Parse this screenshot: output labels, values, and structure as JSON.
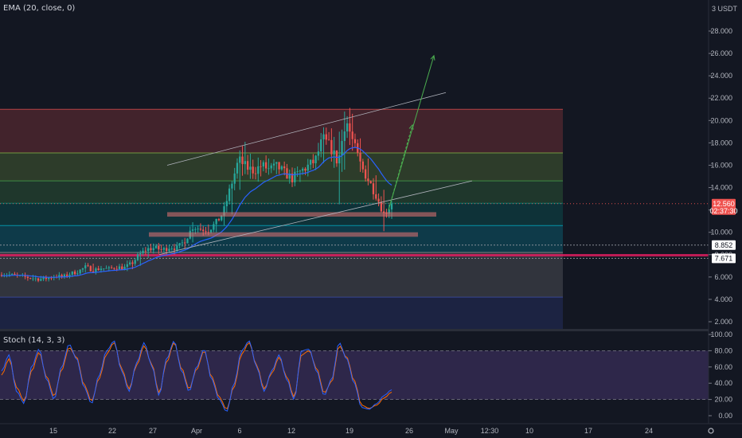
{
  "indicators": {
    "ema_label": "EMA (20, close, 0)",
    "stoch_label": "Stoch (14, 3, 3)"
  },
  "colors": {
    "background": "#131722",
    "up": "#26a69a",
    "down": "#ef5350",
    "ema": "#2962ff",
    "stoch_k": "#2962ff",
    "stoch_d": "#ff6d00",
    "stoch_band": "#7e57c2"
  },
  "chart_data": [
    {
      "type": "candlestick",
      "currency_label": "3 USDT",
      "yaxis_ticks": [
        "28.000",
        "26.000",
        "24.000",
        "22.000",
        "20.000",
        "18.000",
        "16.000",
        "14.000",
        "12.000",
        "10.000",
        "8.000",
        "6.000",
        "4.000",
        "2.000"
      ],
      "ylim": [
        1.0,
        30.2
      ],
      "xaxis_ticks": [
        "15",
        "22",
        "27",
        "Apr",
        "6",
        "12",
        "19",
        "26",
        "May",
        "12:30",
        "10",
        "17",
        "24"
      ],
      "last_price": "12.560",
      "countdown": "02:37:30",
      "price_tags": [
        {
          "value": "8.852",
          "color": "#d1d4dc"
        },
        {
          "value": "7.671",
          "color": "#d1d4dc"
        }
      ],
      "horizontal_levels": [
        {
          "value": 8.852,
          "style": "dashed"
        },
        {
          "value": 7.671,
          "style": "dashed"
        },
        {
          "value": 7.95,
          "style": "solid",
          "color": "#e91e63"
        },
        {
          "value": 12.56,
          "style": "dotted",
          "color": "#ef5350"
        }
      ],
      "zones": [
        {
          "from": 17.1,
          "to": 21.0,
          "color": "#ef5350"
        },
        {
          "from": 14.6,
          "to": 17.1,
          "color": "#8bc34a"
        },
        {
          "from": 12.6,
          "to": 14.6,
          "color": "#4caf50"
        },
        {
          "from": 10.6,
          "to": 12.6,
          "color": "#009688"
        },
        {
          "from": 8.2,
          "to": 10.6,
          "color": "#00bcd4"
        },
        {
          "from": 4.2,
          "to": 8.2,
          "color": "#9e9e9e"
        },
        {
          "from": 1.2,
          "to": 4.2,
          "color": "#3f51b5"
        }
      ],
      "resistance_boxes": [
        {
          "low": 11.4,
          "high": 11.8
        },
        {
          "low": 9.6,
          "high": 10.0
        }
      ],
      "ohlc_anchors": [
        [
          6.2,
          6.4,
          6.0,
          6.3
        ],
        [
          6.3,
          6.5,
          6.1,
          6.2
        ],
        [
          6.2,
          6.4,
          6.0,
          6.1
        ],
        [
          6.1,
          6.3,
          5.9,
          6.0
        ],
        [
          6.0,
          6.2,
          5.8,
          5.9
        ],
        [
          5.9,
          6.1,
          5.7,
          5.8
        ],
        [
          5.8,
          6.0,
          5.6,
          5.9
        ],
        [
          5.9,
          6.2,
          5.7,
          6.1
        ],
        [
          6.1,
          6.3,
          5.9,
          6.0
        ],
        [
          6.0,
          6.4,
          5.9,
          6.3
        ],
        [
          6.3,
          6.6,
          6.1,
          6.5
        ],
        [
          6.5,
          7.1,
          6.4,
          6.9
        ],
        [
          6.9,
          7.2,
          6.5,
          6.6
        ],
        [
          6.6,
          6.9,
          6.4,
          6.8
        ],
        [
          6.8,
          7.0,
          6.5,
          6.7
        ],
        [
          6.7,
          7.0,
          6.6,
          6.9
        ],
        [
          6.9,
          7.1,
          6.6,
          6.8
        ],
        [
          6.8,
          7.3,
          6.7,
          7.2
        ],
        [
          7.2,
          8.2,
          7.0,
          8.0
        ],
        [
          8.0,
          8.8,
          7.7,
          8.5
        ],
        [
          8.5,
          9.0,
          8.1,
          8.6
        ],
        [
          8.6,
          8.9,
          8.2,
          8.4
        ],
        [
          8.4,
          8.9,
          8.2,
          8.7
        ],
        [
          8.7,
          9.0,
          8.4,
          8.6
        ],
        [
          8.6,
          9.5,
          8.5,
          9.3
        ],
        [
          9.3,
          10.9,
          9.1,
          10.5
        ],
        [
          10.5,
          10.8,
          10.1,
          10.3
        ],
        [
          10.3,
          10.7,
          10.0,
          10.2
        ],
        [
          10.2,
          11.0,
          10.0,
          10.8
        ],
        [
          10.8,
          12.0,
          10.6,
          11.8
        ],
        [
          11.8,
          14.5,
          11.6,
          14.2
        ],
        [
          14.2,
          16.8,
          13.8,
          16.5
        ],
        [
          16.5,
          18.1,
          15.2,
          15.8
        ],
        [
          15.8,
          16.5,
          14.8,
          15.5
        ],
        [
          15.5,
          16.4,
          15.0,
          16.0
        ],
        [
          16.0,
          16.6,
          15.4,
          15.6
        ],
        [
          15.6,
          16.3,
          15.2,
          15.9
        ],
        [
          15.9,
          16.2,
          15.1,
          15.3
        ],
        [
          15.3,
          15.8,
          14.6,
          14.8
        ],
        [
          14.8,
          15.6,
          14.5,
          15.4
        ],
        [
          15.4,
          16.2,
          15.0,
          15.9
        ],
        [
          15.9,
          16.8,
          15.6,
          16.4
        ],
        [
          16.4,
          18.8,
          16.2,
          18.4
        ],
        [
          18.4,
          19.3,
          17.0,
          17.6
        ],
        [
          17.6,
          19.0,
          12.5,
          16.2
        ],
        [
          16.2,
          20.8,
          15.6,
          20.2
        ],
        [
          20.2,
          20.6,
          17.3,
          17.9
        ],
        [
          17.9,
          18.4,
          15.4,
          15.9
        ],
        [
          15.9,
          16.6,
          14.2,
          14.6
        ],
        [
          14.6,
          15.1,
          12.9,
          13.3
        ],
        [
          13.3,
          13.8,
          10.1,
          11.6
        ],
        [
          11.6,
          12.7,
          11.2,
          12.56
        ]
      ],
      "ema_period": 20,
      "trendlines": [
        {
          "kind": "upper-channel",
          "from": [
            "Mar 28",
            16.0
          ],
          "to": [
            "Apr 27",
            22.5
          ]
        },
        {
          "kind": "lower-channel",
          "from": [
            "Mar 27",
            8.0
          ],
          "to": [
            "Apr 27",
            14.6
          ]
        },
        {
          "kind": "projection",
          "from": [
            "Apr 23",
            12.0
          ],
          "to": [
            "Apr 27",
            25.8
          ]
        },
        {
          "kind": "projection",
          "from": [
            "Apr 23",
            12.0
          ],
          "to": [
            "Apr 25",
            19.6
          ]
        }
      ]
    },
    {
      "type": "line",
      "name": "Stoch (14, 3, 3)",
      "yaxis_ticks": [
        "100.00",
        "80.00",
        "60.00",
        "40.00",
        "20.00",
        "0.00"
      ],
      "ylim": [
        -3,
        102
      ],
      "bands": [
        20,
        80
      ],
      "k_anchors": [
        55,
        75,
        30,
        15,
        60,
        82,
        45,
        20,
        60,
        88,
        70,
        35,
        15,
        50,
        80,
        92,
        55,
        30,
        65,
        90,
        62,
        25,
        70,
        92,
        55,
        30,
        60,
        82,
        45,
        20,
        5,
        40,
        80,
        92,
        60,
        30,
        55,
        75,
        45,
        20,
        80,
        82,
        55,
        25,
        45,
        90,
        70,
        40,
        10,
        8,
        15,
        25,
        32
      ],
      "d_anchors": [
        50,
        70,
        35,
        18,
        55,
        78,
        48,
        24,
        56,
        84,
        72,
        38,
        18,
        46,
        76,
        90,
        58,
        33,
        62,
        86,
        64,
        28,
        66,
        90,
        58,
        33,
        57,
        80,
        48,
        23,
        8,
        36,
        76,
        90,
        62,
        33,
        52,
        72,
        48,
        23,
        75,
        80,
        58,
        28,
        42,
        86,
        72,
        43,
        13,
        9,
        13,
        22,
        29
      ]
    }
  ]
}
